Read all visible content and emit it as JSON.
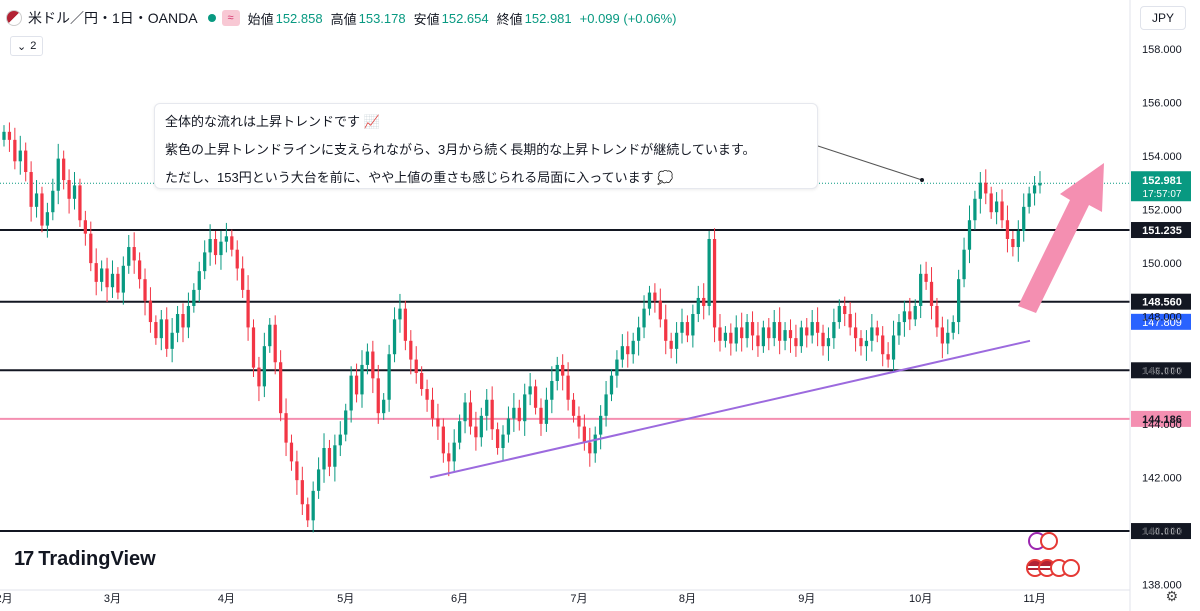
{
  "header": {
    "symbol": "米ドル／円・1日・OANDA",
    "wave_icon": "≈",
    "open_label": "始値",
    "open": "152.858",
    "high_label": "高値",
    "high": "153.178",
    "low_label": "安値",
    "low": "152.654",
    "close_label": "終値",
    "close": "152.981",
    "change": "+0.099 (+0.06%)"
  },
  "indicator_count": "2",
  "currency": "JPY",
  "note": {
    "line1": "全体的な流れは上昇トレンドです 📈",
    "line2": "紫色の上昇トレンドラインに支えられながら、3月から続く長期的な上昇トレンドが継続しています。",
    "line3": "ただし、153円という大台を前に、やや上値の重さも感じられる局面に入っています 💭"
  },
  "logo": "TradingView",
  "colors": {
    "up": "#089981",
    "down": "#f23645",
    "trendline": "#9c6ade",
    "pink_level": "#f48fb1",
    "arrow": "#f48fb1",
    "blue_label": "#2962ff"
  },
  "chart_data": {
    "type": "candlestick",
    "x_ticks": [
      "2月",
      "3月",
      "4月",
      "5月",
      "6月",
      "7月",
      "8月",
      "9月",
      "10月",
      "11月"
    ],
    "y_ticks": [
      "158.000",
      "156.000",
      "154.000",
      "152.000",
      "150.000",
      "148.000",
      "146.000",
      "144.000",
      "142.000",
      "140.000",
      "138.000"
    ],
    "ylim": [
      137.8,
      158.7
    ],
    "current_price": "152.981",
    "countdown": "17:57:07",
    "horizontal_levels": [
      {
        "label": "151.235",
        "value": 151.235,
        "color": "#131722"
      },
      {
        "label": "148.560",
        "value": 148.56,
        "color": "#131722"
      },
      {
        "label": "146.000",
        "value": 146.0,
        "color": "#131722"
      },
      {
        "label": "144.186",
        "value": 144.186,
        "color": "#f48fb1"
      },
      {
        "label": "140.000",
        "value": 140.0,
        "color": "#131722"
      }
    ],
    "blue_marker": {
      "label": "147.809",
      "value": 147.809
    },
    "trendline": [
      [
        0,
        142.0
      ],
      [
        1,
        147.1
      ]
    ],
    "closes": [
      154.9,
      154.6,
      153.8,
      154.2,
      153.4,
      152.1,
      152.6,
      151.4,
      151.9,
      152.7,
      153.9,
      153.1,
      152.4,
      152.9,
      151.6,
      151.1,
      150.0,
      149.3,
      149.8,
      149.1,
      149.6,
      148.9,
      149.9,
      150.6,
      150.1,
      149.4,
      148.6,
      147.8,
      147.2,
      147.9,
      146.8,
      147.4,
      148.1,
      147.6,
      148.4,
      149.0,
      149.7,
      150.4,
      150.9,
      150.3,
      150.8,
      151.0,
      150.5,
      149.8,
      149.0,
      147.6,
      146.1,
      145.4,
      146.9,
      147.7,
      146.3,
      144.4,
      143.3,
      142.6,
      141.9,
      141.0,
      140.4,
      141.5,
      142.3,
      143.1,
      142.4,
      143.2,
      143.6,
      144.5,
      145.8,
      145.1,
      146.2,
      146.7,
      145.7,
      144.4,
      144.9,
      146.6,
      147.9,
      148.3,
      147.1,
      146.4,
      145.9,
      145.3,
      144.9,
      144.2,
      143.9,
      142.9,
      142.6,
      143.3,
      144.1,
      144.8,
      143.9,
      143.5,
      144.3,
      144.9,
      143.8,
      143.1,
      143.6,
      144.2,
      144.6,
      144.1,
      145.1,
      145.4,
      144.6,
      144.0,
      144.9,
      145.6,
      146.2,
      145.8,
      144.9,
      144.3,
      143.9,
      143.3,
      142.9,
      143.6,
      144.3,
      145.1,
      145.8,
      146.4,
      146.9,
      146.6,
      147.1,
      147.6,
      148.3,
      148.9,
      148.6,
      147.9,
      147.1,
      146.8,
      147.4,
      147.8,
      147.3,
      148.1,
      148.7,
      148.4,
      150.9,
      147.6,
      147.1,
      147.4,
      147.0,
      147.6,
      147.2,
      147.8,
      147.3,
      146.9,
      147.6,
      147.2,
      147.8,
      147.1,
      147.5,
      147.2,
      146.9,
      147.6,
      147.3,
      147.8,
      147.4,
      146.9,
      147.2,
      147.8,
      148.4,
      148.1,
      147.6,
      147.2,
      146.9,
      147.1,
      147.6,
      147.3,
      146.6,
      146.4,
      147.3,
      147.8,
      148.2,
      147.9,
      148.4,
      149.6,
      149.3,
      148.4,
      147.6,
      147.0,
      147.4,
      147.8,
      149.4,
      150.5,
      151.6,
      152.4,
      153.0,
      152.6,
      151.9,
      152.3,
      151.6,
      150.9,
      150.6,
      151.2,
      152.1,
      152.6,
      152.9,
      152.981
    ]
  }
}
